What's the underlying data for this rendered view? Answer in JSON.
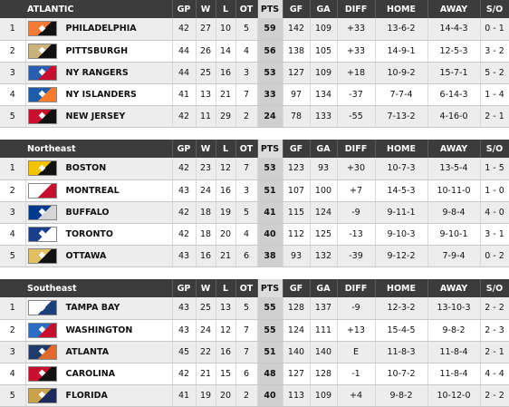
{
  "columns": [
    "GP",
    "W",
    "L",
    "OT",
    "PTS",
    "GF",
    "GA",
    "DIFF",
    "HOME",
    "AWAY",
    "S/O"
  ],
  "divisions": [
    {
      "name": "ATLANTIC",
      "rows": [
        {
          "rank": "1",
          "team": "PHILADELPHIA",
          "logo_icon": "flyers-logo-icon",
          "logo_colors": [
            "#f47a38",
            "#111111"
          ],
          "gp": "42",
          "w": "27",
          "l": "10",
          "ot": "5",
          "pts": "59",
          "gf": "142",
          "ga": "109",
          "diff": "+33",
          "home": "13-6-2",
          "away": "14-4-3",
          "so": "0 - 1"
        },
        {
          "rank": "2",
          "team": "PITTSBURGH",
          "logo_icon": "penguins-logo-icon",
          "logo_colors": [
            "#c9b37a",
            "#111111"
          ],
          "gp": "44",
          "w": "26",
          "l": "14",
          "ot": "4",
          "pts": "56",
          "gf": "138",
          "ga": "105",
          "diff": "+33",
          "home": "14-9-1",
          "away": "12-5-3",
          "so": "3 - 2"
        },
        {
          "rank": "3",
          "team": "NY RANGERS",
          "logo_icon": "rangers-logo-icon",
          "logo_colors": [
            "#2a5fb0",
            "#c8102e"
          ],
          "gp": "44",
          "w": "25",
          "l": "16",
          "ot": "3",
          "pts": "53",
          "gf": "127",
          "ga": "109",
          "diff": "+18",
          "home": "10-9-2",
          "away": "15-7-1",
          "so": "5 - 2"
        },
        {
          "rank": "4",
          "team": "NY ISLANDERS",
          "logo_icon": "islanders-logo-icon",
          "logo_colors": [
            "#1d5ca8",
            "#f47d30"
          ],
          "gp": "41",
          "w": "13",
          "l": "21",
          "ot": "7",
          "pts": "33",
          "gf": "97",
          "ga": "134",
          "diff": "-37",
          "home": "7-7-4",
          "away": "6-14-3",
          "so": "1 - 4"
        },
        {
          "rank": "5",
          "team": "NEW JERSEY",
          "logo_icon": "devils-logo-icon",
          "logo_colors": [
            "#c8102e",
            "#111111"
          ],
          "gp": "42",
          "w": "11",
          "l": "29",
          "ot": "2",
          "pts": "24",
          "gf": "78",
          "ga": "133",
          "diff": "-55",
          "home": "7-13-2",
          "away": "4-16-0",
          "so": "2 - 1"
        }
      ]
    },
    {
      "name": "Northeast",
      "rows": [
        {
          "rank": "1",
          "team": "BOSTON",
          "logo_icon": "bruins-logo-icon",
          "logo_colors": [
            "#f3c300",
            "#111111"
          ],
          "gp": "42",
          "w": "23",
          "l": "12",
          "ot": "7",
          "pts": "53",
          "gf": "123",
          "ga": "93",
          "diff": "+30",
          "home": "10-7-3",
          "away": "13-5-4",
          "so": "1 - 5"
        },
        {
          "rank": "2",
          "team": "MONTREAL",
          "logo_icon": "canadiens-logo-icon",
          "logo_colors": [
            "#ffffff",
            "#c8102e"
          ],
          "gp": "43",
          "w": "24",
          "l": "16",
          "ot": "3",
          "pts": "51",
          "gf": "107",
          "ga": "100",
          "diff": "+7",
          "home": "14-5-3",
          "away": "10-11-0",
          "so": "1 - 0"
        },
        {
          "rank": "3",
          "team": "BUFFALO",
          "logo_icon": "sabres-logo-icon",
          "logo_colors": [
            "#003a8c",
            "#d6d6d6"
          ],
          "gp": "42",
          "w": "18",
          "l": "19",
          "ot": "5",
          "pts": "41",
          "gf": "115",
          "ga": "124",
          "diff": "-9",
          "home": "9-11-1",
          "away": "9-8-4",
          "so": "4 - 0"
        },
        {
          "rank": "4",
          "team": "TORONTO",
          "logo_icon": "maple-leafs-logo-icon",
          "logo_colors": [
            "#1a3f8a",
            "#ffffff"
          ],
          "gp": "42",
          "w": "18",
          "l": "20",
          "ot": "4",
          "pts": "40",
          "gf": "112",
          "ga": "125",
          "diff": "-13",
          "home": "9-10-3",
          "away": "9-10-1",
          "so": "3 - 1"
        },
        {
          "rank": "5",
          "team": "OTTAWA",
          "logo_icon": "senators-logo-icon",
          "logo_colors": [
            "#e0c060",
            "#111111"
          ],
          "gp": "43",
          "w": "16",
          "l": "21",
          "ot": "6",
          "pts": "38",
          "gf": "93",
          "ga": "132",
          "diff": "-39",
          "home": "9-12-2",
          "away": "7-9-4",
          "so": "0 - 2"
        }
      ]
    },
    {
      "name": "Southeast",
      "rows": [
        {
          "rank": "1",
          "team": "TAMPA BAY",
          "logo_icon": "lightning-logo-icon",
          "logo_colors": [
            "#ffffff",
            "#1b3f7a"
          ],
          "gp": "43",
          "w": "25",
          "l": "13",
          "ot": "5",
          "pts": "55",
          "gf": "128",
          "ga": "137",
          "diff": "-9",
          "home": "12-3-2",
          "away": "13-10-3",
          "so": "2 - 2"
        },
        {
          "rank": "2",
          "team": "WASHINGTON",
          "logo_icon": "capitals-logo-icon",
          "logo_colors": [
            "#2b6cc4",
            "#c8102e"
          ],
          "gp": "43",
          "w": "24",
          "l": "12",
          "ot": "7",
          "pts": "55",
          "gf": "124",
          "ga": "111",
          "diff": "+13",
          "home": "15-4-5",
          "away": "9-8-2",
          "so": "2 - 3"
        },
        {
          "rank": "3",
          "team": "ATLANTA",
          "logo_icon": "thrashers-logo-icon",
          "logo_colors": [
            "#1f3b6b",
            "#e06a2b"
          ],
          "gp": "45",
          "w": "22",
          "l": "16",
          "ot": "7",
          "pts": "51",
          "gf": "140",
          "ga": "140",
          "diff": "E",
          "home": "11-8-3",
          "away": "11-8-4",
          "so": "2 - 1"
        },
        {
          "rank": "4",
          "team": "CAROLINA",
          "logo_icon": "hurricanes-logo-icon",
          "logo_colors": [
            "#c8102e",
            "#111111"
          ],
          "gp": "42",
          "w": "21",
          "l": "15",
          "ot": "6",
          "pts": "48",
          "gf": "127",
          "ga": "128",
          "diff": "-1",
          "home": "10-7-2",
          "away": "11-8-4",
          "so": "4 - 4"
        },
        {
          "rank": "5",
          "team": "FLORIDA",
          "logo_icon": "panthers-logo-icon",
          "logo_colors": [
            "#c9a24a",
            "#1b2a5a"
          ],
          "gp": "41",
          "w": "19",
          "l": "20",
          "ot": "2",
          "pts": "40",
          "gf": "113",
          "ga": "109",
          "diff": "+4",
          "home": "9-8-2",
          "away": "10-12-0",
          "so": "2 - 2"
        }
      ]
    }
  ]
}
